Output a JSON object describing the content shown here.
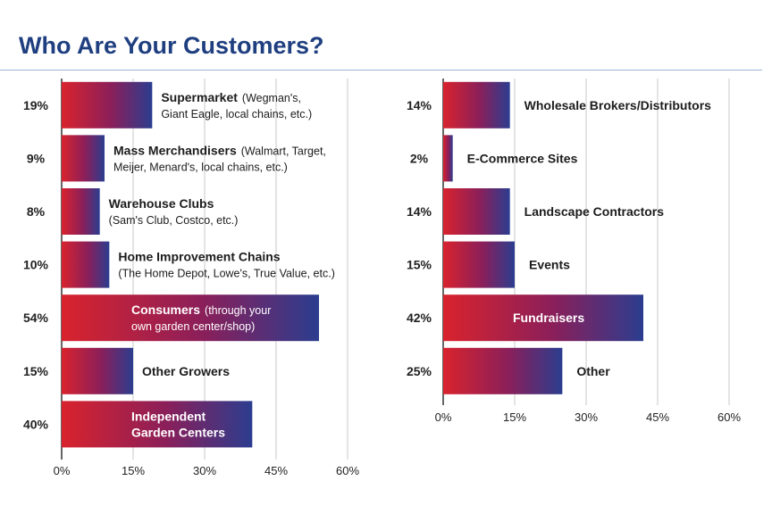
{
  "title": "Who Are Your Customers?",
  "colors": {
    "title": "#1f3f80",
    "bar_start": "#d9232d",
    "bar_mid": "#8a1f5a",
    "bar_end": "#2b3d8f",
    "grid": "#c8c8c8",
    "axis": "#333333"
  },
  "chart_data": [
    {
      "type": "bar",
      "orientation": "horizontal",
      "xlim": [
        0,
        60
      ],
      "ticks": [
        "0%",
        "15%",
        "30%",
        "45%",
        "60%"
      ],
      "grid": true,
      "bars": [
        {
          "value": 19,
          "value_label": "19%",
          "label": "Supermarket",
          "note": "(Wegman's,",
          "note2": "Giant Eagle, local chains, etc.)"
        },
        {
          "value": 9,
          "value_label": "9%",
          "label": "Mass Merchandisers",
          "note": "(Walmart, Target,",
          "note2": "Meijer, Menard's, local chains, etc.)"
        },
        {
          "value": 8,
          "value_label": "8%",
          "label": "Warehouse Clubs",
          "note": "",
          "note2": "(Sam's Club, Costco, etc.)"
        },
        {
          "value": 10,
          "value_label": "10%",
          "label": "Home Improvement Chains",
          "note": "",
          "note2": "(The Home Depot, Lowe's, True Value, etc.)"
        },
        {
          "value": 54,
          "value_label": "54%",
          "label": "Consumers",
          "note": "(through your",
          "note2": "own garden center/shop)"
        },
        {
          "value": 15,
          "value_label": "15%",
          "label": "Other Growers",
          "note": "",
          "note2": ""
        },
        {
          "value": 40,
          "value_label": "40%",
          "label": "Independent",
          "note": "",
          "note2": "Garden Centers"
        }
      ]
    },
    {
      "type": "bar",
      "orientation": "horizontal",
      "xlim": [
        0,
        60
      ],
      "ticks": [
        "0%",
        "15%",
        "30%",
        "45%",
        "60%"
      ],
      "grid": true,
      "bars": [
        {
          "value": 14,
          "value_label": "14%",
          "label": "Wholesale Brokers/Distributors",
          "note": "",
          "note2": ""
        },
        {
          "value": 2,
          "value_label": "2%",
          "label": "E-Commerce Sites",
          "note": "",
          "note2": ""
        },
        {
          "value": 14,
          "value_label": "14%",
          "label": "Landscape Contractors",
          "note": "",
          "note2": ""
        },
        {
          "value": 15,
          "value_label": "15%",
          "label": "Events",
          "note": "",
          "note2": ""
        },
        {
          "value": 42,
          "value_label": "42%",
          "label": "Fundraisers",
          "note": "",
          "note2": ""
        },
        {
          "value": 25,
          "value_label": "25%",
          "label": "Other",
          "note": "",
          "note2": ""
        }
      ]
    }
  ]
}
